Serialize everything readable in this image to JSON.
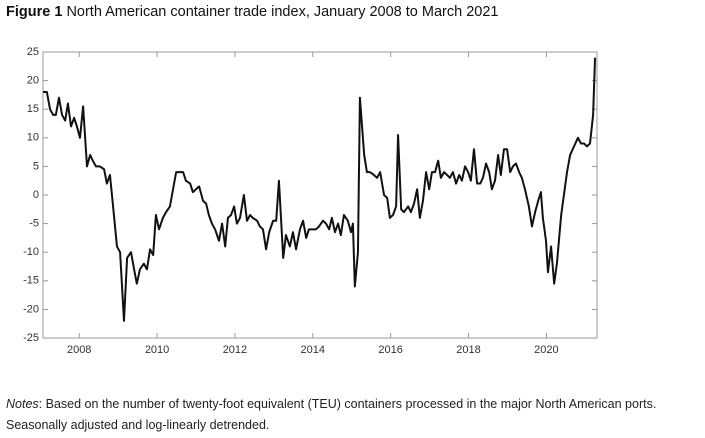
{
  "chart_data": {
    "type": "line",
    "label": "Figure 1",
    "title": "North American container trade index, January 2008 to March 2021",
    "x": [
      2007.07,
      2007.17,
      2007.25,
      2007.33,
      2007.4,
      2007.48,
      2007.56,
      2007.64,
      2007.71,
      2007.79,
      2007.87,
      2007.94,
      2008.02,
      2008.1,
      2008.2,
      2008.28,
      2008.35,
      2008.43,
      2008.53,
      2008.64,
      2008.71,
      2008.79,
      2008.87,
      2008.97,
      2009.05,
      2009.15,
      2009.23,
      2009.33,
      2009.41,
      2009.48,
      2009.56,
      2009.66,
      2009.74,
      2009.82,
      2009.9,
      2009.97,
      2010.05,
      2010.15,
      2010.23,
      2010.33,
      2010.41,
      2010.49,
      2010.59,
      2010.67,
      2010.74,
      2010.85,
      2010.92,
      2011.0,
      2011.08,
      2011.18,
      2011.26,
      2011.33,
      2011.41,
      2011.49,
      2011.59,
      2011.67,
      2011.75,
      2011.82,
      2011.9,
      2011.98,
      2012.05,
      2012.13,
      2012.23,
      2012.31,
      2012.39,
      2012.46,
      2012.57,
      2012.64,
      2012.72,
      2012.8,
      2012.88,
      2012.98,
      2013.06,
      2013.13,
      2013.24,
      2013.31,
      2013.41,
      2013.49,
      2013.57,
      2013.67,
      2013.75,
      2013.83,
      2013.9,
      2014.01,
      2014.08,
      2014.16,
      2014.26,
      2014.34,
      2014.42,
      2014.49,
      2014.57,
      2014.65,
      2014.72,
      2014.8,
      2014.9,
      2014.98,
      2015.03,
      2015.08,
      2015.16,
      2015.21,
      2015.32,
      2015.39,
      2015.47,
      2015.57,
      2015.65,
      2015.73,
      2015.83,
      2015.91,
      2015.98,
      2016.06,
      2016.14,
      2016.19,
      2016.27,
      2016.34,
      2016.45,
      2016.52,
      2016.6,
      2016.68,
      2016.75,
      2016.83,
      2016.91,
      2016.99,
      2017.06,
      2017.14,
      2017.22,
      2017.29,
      2017.37,
      2017.45,
      2017.52,
      2017.6,
      2017.68,
      2017.76,
      2017.83,
      2017.91,
      2017.99,
      2018.06,
      2018.14,
      2018.22,
      2018.3,
      2018.37,
      2018.45,
      2018.53,
      2018.6,
      2018.68,
      2018.76,
      2018.83,
      2018.91,
      2018.99,
      2019.07,
      2019.14,
      2019.22,
      2019.3,
      2019.37,
      2019.45,
      2019.55,
      2019.63,
      2019.71,
      2019.79,
      2019.86,
      2019.91,
      2019.99,
      2020.04,
      2020.12,
      2020.2,
      2020.27,
      2020.38,
      2020.45,
      2020.53,
      2020.61,
      2020.71,
      2020.81,
      2020.89,
      2020.97,
      2021.04,
      2021.12,
      2021.2,
      2021.25
    ],
    "series": [
      {
        "color": "#111111",
        "values": [
          18,
          18,
          15,
          14,
          14,
          17,
          14,
          13,
          16,
          12,
          13.5,
          12,
          10,
          15.5,
          5,
          7,
          6,
          5,
          5,
          4.5,
          2,
          3.5,
          -2,
          -9,
          -10,
          -22,
          -11,
          -10,
          -13,
          -15.5,
          -13,
          -12,
          -13,
          -9.5,
          -10.5,
          -3.5,
          -6,
          -4,
          -3,
          -2,
          1,
          4,
          4,
          4,
          2.5,
          2,
          0.5,
          1,
          1.5,
          -1,
          -1.5,
          -3.5,
          -5,
          -6,
          -8,
          -5,
          -9,
          -4,
          -3.5,
          -2,
          -5,
          -4,
          0,
          -4.5,
          -3.5,
          -4,
          -4.5,
          -5.5,
          -6,
          -9.5,
          -6.5,
          -4.5,
          -4.5,
          2.5,
          -11,
          -7,
          -9,
          -6.5,
          -9.5,
          -6,
          -4.5,
          -7.5,
          -6,
          -6,
          -6,
          -5.5,
          -4.5,
          -5,
          -6,
          -4,
          -6.5,
          -5,
          -7,
          -3.5,
          -4.5,
          -6.5,
          -5,
          -16,
          -10,
          17,
          7,
          4,
          4,
          3.5,
          3,
          4,
          0,
          -0.5,
          -4,
          -3.5,
          -2,
          10.5,
          -2.5,
          -3,
          -2,
          -3,
          -1.5,
          1,
          -4,
          -1,
          4,
          1,
          4,
          4,
          6,
          3,
          4,
          3.5,
          3,
          4,
          2,
          3.5,
          2.5,
          5,
          4,
          2.5,
          8,
          2,
          2,
          3,
          5.5,
          4,
          1,
          2.5,
          7,
          3.5,
          8,
          8,
          4,
          5,
          5.5,
          4,
          3,
          1,
          -2,
          -5.5,
          -3,
          -1,
          0.5,
          -4,
          -8,
          -13.5,
          -9,
          -15.5,
          -12,
          -3.5,
          0,
          4,
          7,
          8.5,
          10,
          9,
          9,
          8.5,
          9,
          14,
          24
        ]
      }
    ],
    "xlim": [
      2007.07,
      2021.3
    ],
    "xticks": [
      2008,
      2010,
      2012,
      2014,
      2016,
      2018,
      2020
    ],
    "ylim": [
      -25,
      25
    ],
    "yticks": [
      -25,
      -20,
      -15,
      -10,
      -5,
      0,
      5,
      10,
      15,
      20,
      25
    ]
  },
  "notes": {
    "label": "Notes",
    "lines": [
      ": Based on the number of twenty-foot equivalent (TEU) containers processed in the major North American ports.",
      "Seasonally adjusted and log-linearly detrended."
    ]
  }
}
